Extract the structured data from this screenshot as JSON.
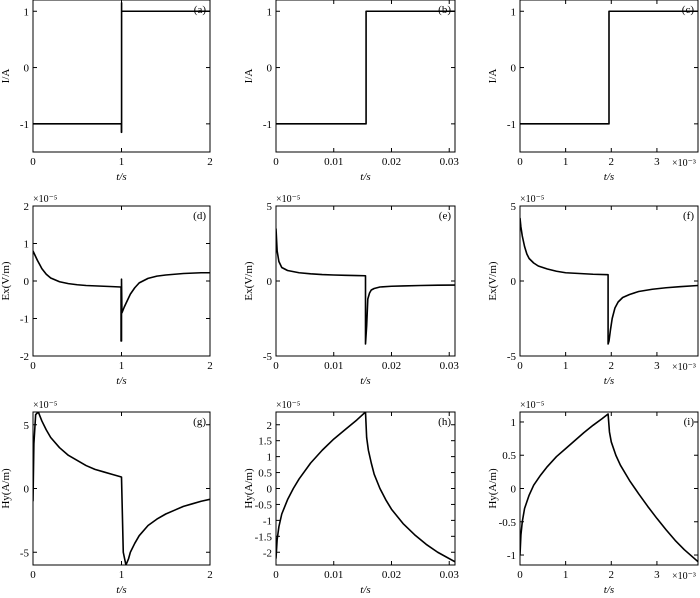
{
  "chart_data": [
    {
      "type": "line",
      "panel": "(a)",
      "xlabel": "t/s",
      "ylabel": "I/A",
      "xlim": [
        0,
        2
      ],
      "ylim": [
        -1.5,
        1.2
      ],
      "xticks": [
        0,
        1,
        2
      ],
      "xtick_labels": [
        "0",
        "1",
        "2"
      ],
      "yticks": [
        -1,
        0,
        1
      ],
      "ytick_labels": [
        "-1",
        "0",
        "1"
      ],
      "x_exponent": "",
      "y_exponent": "",
      "x": [
        0,
        0.999,
        0.999,
        1.001,
        1.001,
        1.001,
        2
      ],
      "y": [
        -1,
        -1,
        -1.15,
        -1.15,
        1.15,
        1,
        1
      ]
    },
    {
      "type": "line",
      "panel": "(b)",
      "xlabel": "t/s",
      "ylabel": "I/A",
      "xlim": [
        0,
        0.031
      ],
      "ylim": [
        -1.5,
        1.2
      ],
      "xticks": [
        0,
        0.01,
        0.02,
        0.03
      ],
      "xtick_labels": [
        "0",
        "0.01",
        "0.02",
        "0.03"
      ],
      "yticks": [
        -1,
        0,
        1
      ],
      "ytick_labels": [
        "-1",
        "0",
        "1"
      ],
      "x_exponent": "",
      "y_exponent": "",
      "x": [
        0,
        0.0156,
        0.0156,
        0.031
      ],
      "y": [
        -1,
        -1,
        1,
        1
      ]
    },
    {
      "type": "line",
      "panel": "(c)",
      "xlabel": "t/s",
      "ylabel": "I/A",
      "xlim": [
        0,
        3.9
      ],
      "ylim": [
        -1.5,
        1.2
      ],
      "xticks": [
        0,
        1,
        2,
        3
      ],
      "xtick_labels": [
        "0",
        "1",
        "2",
        "3"
      ],
      "yticks": [
        -1,
        0,
        1
      ],
      "ytick_labels": [
        "-1",
        "0",
        "1"
      ],
      "x_exponent": "×10⁻³",
      "y_exponent": "",
      "x": [
        0,
        1.95,
        1.95,
        3.9
      ],
      "y": [
        -1,
        -1,
        1,
        1
      ]
    },
    {
      "type": "line",
      "panel": "(d)",
      "xlabel": "t/s",
      "ylabel": "Ex(V/m)",
      "xlim": [
        0,
        2
      ],
      "ylim": [
        -2,
        2
      ],
      "xticks": [
        0,
        1,
        2
      ],
      "xtick_labels": [
        "0",
        "1",
        "2"
      ],
      "yticks": [
        -2,
        -1,
        0,
        1,
        2
      ],
      "ytick_labels": [
        "-2",
        "-1",
        "0",
        "1",
        "2"
      ],
      "x_exponent": "",
      "y_exponent": "×10⁻⁵",
      "x": [
        0,
        0.02,
        0.05,
        0.08,
        0.1,
        0.15,
        0.2,
        0.3,
        0.4,
        0.5,
        0.6,
        0.7,
        0.8,
        0.9,
        0.99,
        0.995,
        0.995,
        1.0,
        1.0,
        1.005,
        1.01,
        1.03,
        1.05,
        1.08,
        1.1,
        1.15,
        1.2,
        1.3,
        1.4,
        1.5,
        1.6,
        1.7,
        1.8,
        1.9,
        2.0
      ],
      "y": [
        0.8,
        0.7,
        0.55,
        0.42,
        0.33,
        0.18,
        0.08,
        -0.02,
        -0.07,
        -0.1,
        -0.12,
        -0.13,
        -0.14,
        -0.15,
        -0.16,
        -0.16,
        -1.6,
        -1.6,
        0.05,
        -0.85,
        -0.82,
        -0.7,
        -0.6,
        -0.45,
        -0.35,
        -0.18,
        -0.05,
        0.07,
        0.13,
        0.16,
        0.18,
        0.2,
        0.21,
        0.22,
        0.22
      ]
    },
    {
      "type": "line",
      "panel": "(e)",
      "xlabel": "t/s",
      "ylabel": "Ex(V/m)",
      "xlim": [
        0,
        0.031
      ],
      "ylim": [
        -5,
        5
      ],
      "xticks": [
        0,
        0.01,
        0.02,
        0.03
      ],
      "xtick_labels": [
        "0",
        "0.01",
        "0.02",
        "0.03"
      ],
      "yticks": [
        -5,
        0,
        5
      ],
      "ytick_labels": [
        "-5",
        "0",
        "5"
      ],
      "x_exponent": "",
      "y_exponent": "×10⁻⁵",
      "x": [
        0,
        0.0002,
        0.0005,
        0.001,
        0.002,
        0.004,
        0.006,
        0.008,
        0.01,
        0.012,
        0.014,
        0.0155,
        0.0155,
        0.0157,
        0.0159,
        0.0162,
        0.0165,
        0.017,
        0.018,
        0.02,
        0.022,
        0.025,
        0.028,
        0.031
      ],
      "y": [
        3.5,
        2.0,
        1.3,
        0.9,
        0.7,
        0.55,
        0.48,
        0.43,
        0.4,
        0.38,
        0.36,
        0.35,
        -4.2,
        -3.0,
        -1.2,
        -0.8,
        -0.6,
        -0.5,
        -0.4,
        -0.35,
        -0.33,
        -0.3,
        -0.28,
        -0.27
      ]
    },
    {
      "type": "line",
      "panel": "(f)",
      "xlabel": "t/s",
      "ylabel": "Ex(V/m)",
      "xlim": [
        0,
        3.9
      ],
      "ylim": [
        -5,
        5
      ],
      "xticks": [
        0,
        1,
        2,
        3
      ],
      "xtick_labels": [
        "0",
        "1",
        "2",
        "3"
      ],
      "yticks": [
        -5,
        0,
        5
      ],
      "ytick_labels": [
        "-5",
        "0",
        "5"
      ],
      "x_exponent": "×10⁻³",
      "y_exponent": "×10⁻⁵",
      "x": [
        0,
        0.02,
        0.05,
        0.1,
        0.15,
        0.2,
        0.3,
        0.4,
        0.6,
        0.8,
        1.0,
        1.3,
        1.6,
        1.93,
        1.93,
        1.95,
        1.98,
        2.02,
        2.08,
        2.15,
        2.25,
        2.4,
        2.6,
        2.9,
        3.2,
        3.5,
        3.9
      ],
      "y": [
        4.2,
        3.6,
        3.0,
        2.3,
        1.8,
        1.5,
        1.2,
        1.0,
        0.8,
        0.65,
        0.55,
        0.5,
        0.45,
        0.42,
        -4.2,
        -4.0,
        -3.3,
        -2.5,
        -1.8,
        -1.4,
        -1.1,
        -0.9,
        -0.7,
        -0.55,
        -0.45,
        -0.38,
        -0.3
      ]
    },
    {
      "type": "line",
      "panel": "(g)",
      "xlabel": "t/s",
      "ylabel": "Hy(A/m)",
      "xlim": [
        0,
        2
      ],
      "ylim": [
        -6,
        6
      ],
      "xticks": [
        0,
        1,
        2
      ],
      "xtick_labels": [
        "0",
        "1",
        "2"
      ],
      "yticks": [
        -5,
        0,
        5
      ],
      "ytick_labels": [
        "-5",
        "0",
        "5"
      ],
      "x_exponent": "",
      "y_exponent": "×10⁻⁵",
      "x": [
        0,
        0.01,
        0.03,
        0.06,
        0.1,
        0.15,
        0.2,
        0.3,
        0.4,
        0.5,
        0.6,
        0.7,
        0.8,
        0.9,
        0.999,
        1.0,
        1.02,
        1.05,
        1.08,
        1.1,
        1.15,
        1.2,
        1.3,
        1.4,
        1.5,
        1.6,
        1.7,
        1.8,
        1.9,
        2.0
      ],
      "y": [
        -1.0,
        3.5,
        5.8,
        6.0,
        5.3,
        4.6,
        4.0,
        3.2,
        2.6,
        2.2,
        1.8,
        1.5,
        1.3,
        1.1,
        0.9,
        0.9,
        -5.0,
        -6.0,
        -5.5,
        -5.0,
        -4.3,
        -3.7,
        -2.9,
        -2.4,
        -2.0,
        -1.7,
        -1.4,
        -1.2,
        -1.0,
        -0.85
      ]
    },
    {
      "type": "line",
      "panel": "(h)",
      "xlabel": "t/s",
      "ylabel": "Hy(A/m)",
      "xlim": [
        0,
        0.031
      ],
      "ylim": [
        -2.4,
        2.4
      ],
      "xticks": [
        0,
        0.01,
        0.02,
        0.03
      ],
      "xtick_labels": [
        "0",
        "0.01",
        "0.02",
        "0.03"
      ],
      "yticks": [
        -2,
        -1.5,
        -1,
        -0.5,
        0,
        0.5,
        1,
        1.5,
        2
      ],
      "ytick_labels": [
        "-2",
        "-1.5",
        "-1",
        "-0.5",
        "0",
        "0.5",
        "1",
        "1.5",
        "2"
      ],
      "x_exponent": "",
      "y_exponent": "×10⁻⁵",
      "x": [
        0,
        0.0002,
        0.0005,
        0.001,
        0.002,
        0.003,
        0.004,
        0.006,
        0.008,
        0.01,
        0.012,
        0.014,
        0.0155,
        0.0155,
        0.0157,
        0.016,
        0.0165,
        0.017,
        0.018,
        0.019,
        0.02,
        0.022,
        0.024,
        0.026,
        0.028,
        0.031
      ],
      "y": [
        -2.2,
        -1.6,
        -1.2,
        -0.8,
        -0.35,
        0.0,
        0.3,
        0.8,
        1.2,
        1.55,
        1.85,
        2.15,
        2.4,
        2.4,
        1.6,
        1.2,
        0.8,
        0.45,
        0.0,
        -0.35,
        -0.65,
        -1.1,
        -1.45,
        -1.75,
        -2.0,
        -2.3
      ]
    },
    {
      "type": "line",
      "panel": "(i)",
      "xlabel": "t/s",
      "ylabel": "Hy(A/m)",
      "xlim": [
        0,
        3.9
      ],
      "ylim": [
        -1.15,
        1.15
      ],
      "xticks": [
        0,
        1,
        2,
        3
      ],
      "xtick_labels": [
        "0",
        "1",
        "2",
        "3"
      ],
      "yticks": [
        -1,
        -0.5,
        0,
        0.5,
        1
      ],
      "ytick_labels": [
        "-1",
        "-0.5",
        "0",
        "0.5",
        "1"
      ],
      "x_exponent": "×10⁻³",
      "y_exponent": "×10⁻⁵",
      "x": [
        0,
        0.02,
        0.05,
        0.1,
        0.2,
        0.3,
        0.45,
        0.6,
        0.8,
        1.0,
        1.2,
        1.4,
        1.6,
        1.8,
        1.93,
        1.93,
        1.96,
        2.0,
        2.1,
        2.2,
        2.4,
        2.6,
        2.8,
        3.0,
        3.2,
        3.4,
        3.6,
        3.9
      ],
      "y": [
        -1.0,
        -0.7,
        -0.5,
        -0.3,
        -0.1,
        0.05,
        0.2,
        0.33,
        0.48,
        0.6,
        0.72,
        0.84,
        0.95,
        1.05,
        1.12,
        1.12,
        0.85,
        0.7,
        0.5,
        0.35,
        0.12,
        -0.08,
        -0.27,
        -0.45,
        -0.62,
        -0.78,
        -0.92,
        -1.1
      ]
    }
  ]
}
